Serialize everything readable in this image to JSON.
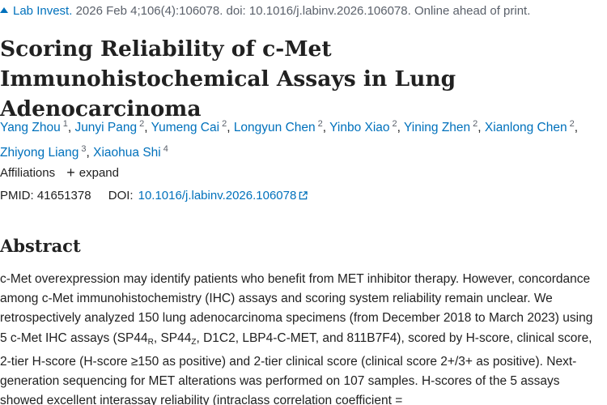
{
  "citation": {
    "journal": "Lab Invest.",
    "details": "2026 Feb 4;106(4):106078. doi: 10.1016/j.labinv.2026.106078. Online ahead of print."
  },
  "title": "Scoring Reliability of c-Met Immunohistochemical Assays in Lung Adenocarcinoma",
  "authors": [
    {
      "name": "Yang Zhou",
      "aff": "1"
    },
    {
      "name": "Junyi Pang",
      "aff": "2"
    },
    {
      "name": "Yumeng Cai",
      "aff": "2"
    },
    {
      "name": "Longyun Chen",
      "aff": "2"
    },
    {
      "name": "Yinbo Xiao",
      "aff": "2"
    },
    {
      "name": "Yining Zhen",
      "aff": "2"
    },
    {
      "name": "Xianlong Chen",
      "aff": "2"
    },
    {
      "name": "Zhiyong Liang",
      "aff": "3"
    },
    {
      "name": "Xiaohua Shi",
      "aff": "4"
    }
  ],
  "affiliations": {
    "label": "Affiliations",
    "expand_label": "expand"
  },
  "identifiers": {
    "pmid_label": "PMID:",
    "pmid": "41651378",
    "doi_label": "DOI:",
    "doi": "10.1016/j.labinv.2026.106078"
  },
  "abstract": {
    "heading": "Abstract",
    "part1": "c-Met overexpression may identify patients who benefit from MET inhibitor therapy. However, concordance among c-Met immunohistochemistry (IHC) assays and scoring system reliability remain unclear. We retrospectively analyzed 150 lung adenocarcinoma specimens (from December 2018 to March 2023) using 5 c-Met IHC assays (SP44",
    "sub1": "R",
    "part2": ", SP44",
    "sub2": "Z",
    "part3": ", D1C2, LBP4-C-MET, and 811B7F4), scored by H-score, clinical score, 2-tier H-score (H-score ≥150 as positive) and 2-tier clinical score (clinical score 2+/3+ as positive). Next-generation sequencing for MET alterations was performed on 107 samples. H-scores of the 5 assays showed excellent interassay reliability (intraclass correlation coefficient ="
  }
}
